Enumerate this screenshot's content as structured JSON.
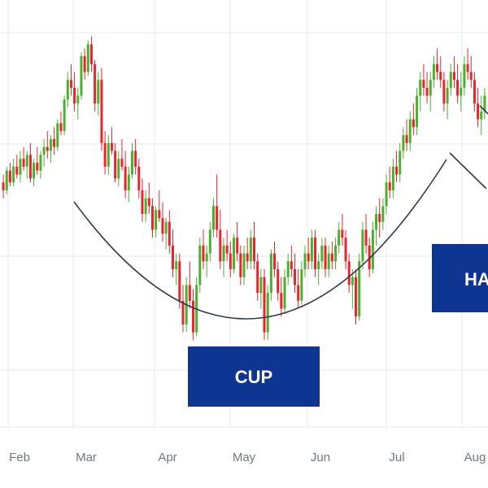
{
  "chart_data": {
    "type": "candlestick",
    "title": "",
    "xlabel": "",
    "ylabel": "",
    "x_tick_labels": [
      "Feb",
      "Mar",
      "Apr",
      "May",
      "Jun",
      "Jul",
      "Aug"
    ],
    "ylim": [
      0,
      100
    ],
    "grid": true,
    "legend": "none",
    "colors": {
      "up": "#4caf2f",
      "down": "#e8242d",
      "grid": "#e7e9ec",
      "curve": "#2f3a50",
      "annotation_bg": "#0e3590",
      "annotation_text": "#ffffff",
      "tick_text": "#6f7780"
    },
    "annotations": [
      {
        "label": "CUP"
      },
      {
        "label": "HA"
      }
    ],
    "series": {
      "ohlc": [
        [
          62,
          64,
          58,
          60
        ],
        [
          60,
          66,
          59,
          65
        ],
        [
          65,
          67,
          61,
          62
        ],
        [
          62,
          68,
          61,
          66
        ],
        [
          66,
          69,
          63,
          64
        ],
        [
          64,
          70,
          62,
          68
        ],
        [
          68,
          71,
          65,
          66
        ],
        [
          66,
          70,
          63,
          69
        ],
        [
          69,
          72,
          62,
          63
        ],
        [
          63,
          68,
          61,
          67
        ],
        [
          67,
          71,
          64,
          65
        ],
        [
          65,
          70,
          63,
          69
        ],
        [
          69,
          73,
          66,
          71
        ],
        [
          71,
          75,
          68,
          70
        ],
        [
          70,
          74,
          67,
          73
        ],
        [
          73,
          76,
          69,
          71
        ],
        [
          71,
          78,
          70,
          77
        ],
        [
          77,
          80,
          74,
          75
        ],
        [
          75,
          84,
          74,
          83
        ],
        [
          83,
          90,
          81,
          88
        ],
        [
          88,
          92,
          84,
          86
        ],
        [
          86,
          90,
          80,
          82
        ],
        [
          82,
          86,
          78,
          84
        ],
        [
          84,
          95,
          83,
          94
        ],
        [
          94,
          96,
          88,
          90
        ],
        [
          90,
          98,
          89,
          97
        ],
        [
          97,
          99,
          90,
          92
        ],
        [
          92,
          93,
          80,
          82
        ],
        [
          82,
          90,
          79,
          88
        ],
        [
          88,
          91,
          70,
          72
        ],
        [
          72,
          75,
          64,
          66
        ],
        [
          66,
          74,
          64,
          72
        ],
        [
          72,
          76,
          69,
          70
        ],
        [
          70,
          72,
          62,
          63
        ],
        [
          63,
          70,
          61,
          68
        ],
        [
          68,
          73,
          65,
          66
        ],
        [
          66,
          70,
          58,
          60
        ],
        [
          60,
          66,
          57,
          64
        ],
        [
          64,
          72,
          63,
          70
        ],
        [
          70,
          73,
          64,
          66
        ],
        [
          66,
          68,
          58,
          60
        ],
        [
          60,
          63,
          52,
          54
        ],
        [
          54,
          60,
          52,
          58
        ],
        [
          58,
          62,
          54,
          56
        ],
        [
          56,
          58,
          48,
          50
        ],
        [
          50,
          56,
          48,
          55
        ],
        [
          55,
          60,
          52,
          53
        ],
        [
          53,
          57,
          47,
          49
        ],
        [
          49,
          53,
          45,
          52
        ],
        [
          52,
          55,
          44,
          46
        ],
        [
          46,
          50,
          38,
          40
        ],
        [
          40,
          44,
          36,
          42
        ],
        [
          42,
          44,
          30,
          32
        ],
        [
          32,
          36,
          24,
          26
        ],
        [
          26,
          38,
          24,
          36
        ],
        [
          36,
          42,
          30,
          32
        ],
        [
          32,
          35,
          22,
          24
        ],
        [
          24,
          38,
          23,
          36
        ],
        [
          36,
          48,
          34,
          46
        ],
        [
          46,
          50,
          40,
          42
        ],
        [
          42,
          46,
          38,
          44
        ],
        [
          44,
          52,
          42,
          50
        ],
        [
          50,
          58,
          48,
          56
        ],
        [
          56,
          64,
          48,
          50
        ],
        [
          50,
          55,
          40,
          42
        ],
        [
          42,
          48,
          38,
          46
        ],
        [
          46,
          50,
          42,
          44
        ],
        [
          44,
          47,
          38,
          40
        ],
        [
          40,
          49,
          39,
          48
        ],
        [
          48,
          52,
          42,
          44
        ],
        [
          44,
          46,
          36,
          38
        ],
        [
          38,
          46,
          36,
          44
        ],
        [
          44,
          48,
          40,
          42
        ],
        [
          42,
          50,
          40,
          48
        ],
        [
          48,
          52,
          40,
          42
        ],
        [
          42,
          44,
          32,
          34
        ],
        [
          34,
          40,
          30,
          38
        ],
        [
          38,
          40,
          22,
          24
        ],
        [
          24,
          36,
          22,
          34
        ],
        [
          34,
          45,
          32,
          44
        ],
        [
          44,
          47,
          38,
          40
        ],
        [
          40,
          42,
          32,
          34
        ],
        [
          34,
          38,
          28,
          30
        ],
        [
          30,
          40,
          29,
          38
        ],
        [
          38,
          44,
          36,
          42
        ],
        [
          42,
          46,
          38,
          40
        ],
        [
          40,
          44,
          34,
          36
        ],
        [
          36,
          40,
          30,
          32
        ],
        [
          32,
          42,
          31,
          40
        ],
        [
          40,
          46,
          38,
          44
        ],
        [
          44,
          48,
          40,
          42
        ],
        [
          42,
          50,
          40,
          48
        ],
        [
          48,
          50,
          38,
          40
        ],
        [
          40,
          44,
          36,
          42
        ],
        [
          42,
          48,
          40,
          46
        ],
        [
          46,
          48,
          38,
          40
        ],
        [
          40,
          46,
          38,
          44
        ],
        [
          44,
          47,
          40,
          42
        ],
        [
          42,
          48,
          40,
          46
        ],
        [
          46,
          52,
          44,
          50
        ],
        [
          50,
          54,
          46,
          48
        ],
        [
          48,
          50,
          40,
          42
        ],
        [
          42,
          44,
          34,
          36
        ],
        [
          36,
          40,
          30,
          38
        ],
        [
          38,
          40,
          26,
          28
        ],
        [
          28,
          44,
          27,
          42
        ],
        [
          42,
          52,
          40,
          50
        ],
        [
          50,
          54,
          44,
          46
        ],
        [
          46,
          48,
          38,
          40
        ],
        [
          40,
          52,
          39,
          50
        ],
        [
          50,
          56,
          46,
          54
        ],
        [
          54,
          58,
          48,
          52
        ],
        [
          52,
          58,
          50,
          56
        ],
        [
          56,
          64,
          54,
          62
        ],
        [
          62,
          66,
          58,
          60
        ],
        [
          60,
          68,
          58,
          66
        ],
        [
          66,
          70,
          62,
          64
        ],
        [
          64,
          72,
          62,
          70
        ],
        [
          70,
          76,
          68,
          74
        ],
        [
          74,
          78,
          70,
          72
        ],
        [
          72,
          80,
          70,
          78
        ],
        [
          78,
          82,
          74,
          76
        ],
        [
          76,
          86,
          74,
          84
        ],
        [
          84,
          90,
          80,
          88
        ],
        [
          88,
          92,
          84,
          86
        ],
        [
          86,
          90,
          82,
          84
        ],
        [
          84,
          90,
          80,
          88
        ],
        [
          88,
          94,
          86,
          92
        ],
        [
          92,
          96,
          88,
          90
        ],
        [
          90,
          94,
          86,
          88
        ],
        [
          88,
          90,
          80,
          82
        ],
        [
          82,
          88,
          78,
          86
        ],
        [
          86,
          92,
          84,
          90
        ],
        [
          90,
          94,
          86,
          88
        ],
        [
          88,
          92,
          82,
          84
        ],
        [
          84,
          90,
          80,
          86
        ],
        [
          86,
          94,
          84,
          92
        ],
        [
          92,
          96,
          88,
          90
        ],
        [
          90,
          94,
          86,
          88
        ],
        [
          88,
          90,
          80,
          82
        ],
        [
          82,
          86,
          76,
          78
        ],
        [
          78,
          84,
          74,
          80
        ],
        [
          80,
          86,
          78,
          84
        ]
      ]
    }
  }
}
